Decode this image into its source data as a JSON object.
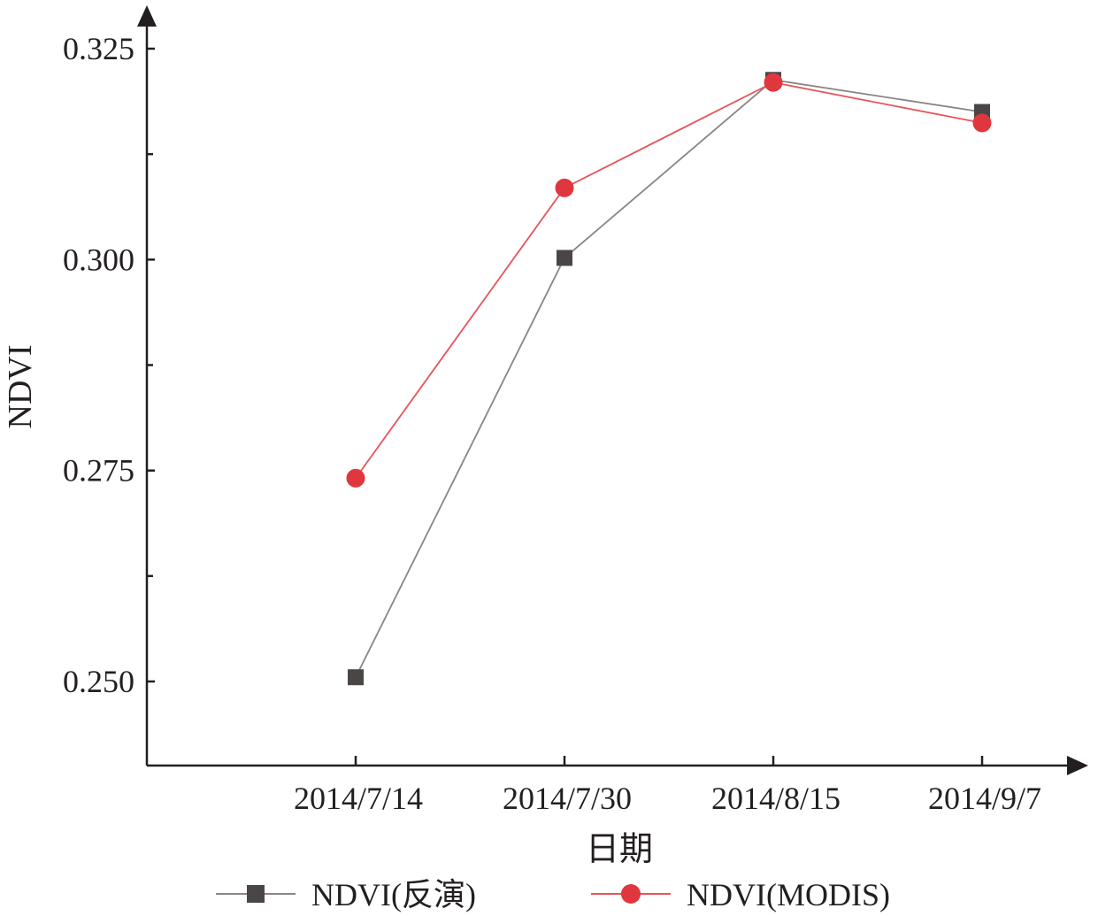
{
  "chart_data": {
    "type": "line",
    "title": "",
    "xlabel": "日期",
    "ylabel": "NDVI",
    "categories": [
      "2014/7/14",
      "2014/7/30",
      "2014/8/15",
      "2014/9/7"
    ],
    "ylim": [
      0.24,
      0.3265
    ],
    "yticks": [
      0.25,
      0.275,
      0.3,
      0.325
    ],
    "ytick_labels": [
      "0.250",
      "0.275",
      "0.300",
      "0.325"
    ],
    "grid": false,
    "legend_position": "bottom",
    "series": [
      {
        "name": "NDVI(反演)",
        "values": [
          0.2505,
          0.3002,
          0.3213,
          0.3175
        ],
        "marker": "square",
        "line_color": "#8a8584",
        "marker_color": "#4a4645"
      },
      {
        "name": "NDVI(MODIS)",
        "values": [
          0.2741,
          0.3085,
          0.321,
          0.3162
        ],
        "marker": "circle",
        "line_color": "#e6545a",
        "marker_color": "#e0373f"
      }
    ]
  }
}
